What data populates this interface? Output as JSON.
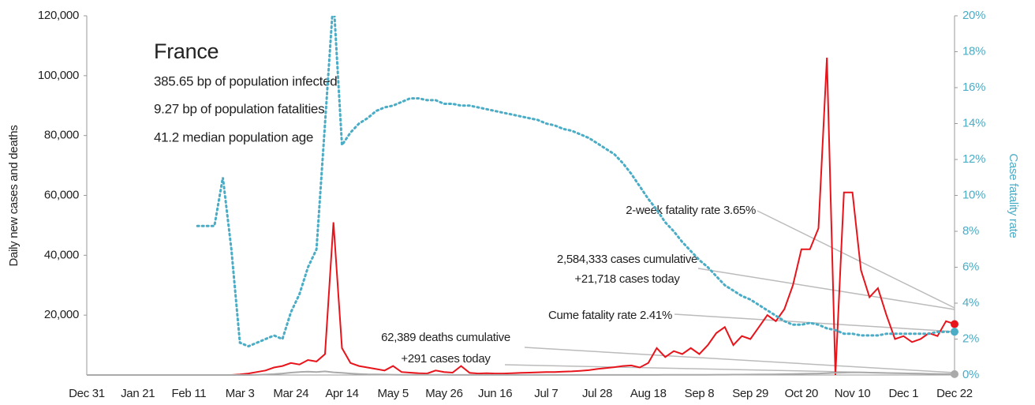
{
  "chart_data": {
    "type": "line",
    "title": "France",
    "subtitle_lines": [
      "385.65 bp of population infected",
      "9.27 bp of population fatalities",
      "41.2 median population age"
    ],
    "ylabel": "Daily new cases and deaths",
    "y2label": "Case fatality rate",
    "categories": [
      "Dec 31",
      null,
      null,
      null,
      null,
      null,
      "Jan 21",
      null,
      null,
      null,
      null,
      null,
      "Feb 11",
      null,
      null,
      null,
      null,
      null,
      "Mar 3",
      null,
      null,
      null,
      null,
      null,
      "Mar 24",
      null,
      null,
      null,
      null,
      null,
      "Apr 14",
      null,
      null,
      null,
      null,
      null,
      "May 5",
      null,
      null,
      null,
      null,
      null,
      "May 26",
      null,
      null,
      null,
      null,
      null,
      "Jun 16",
      null,
      null,
      null,
      null,
      null,
      "Jul 7",
      null,
      null,
      null,
      null,
      null,
      "Jul 28",
      null,
      null,
      null,
      null,
      null,
      "Aug 18",
      null,
      null,
      null,
      null,
      null,
      "Sep 8",
      null,
      null,
      null,
      null,
      null,
      "Sep 29",
      null,
      null,
      null,
      null,
      null,
      "Oct 20",
      null,
      null,
      null,
      null,
      null,
      "Nov 10",
      null,
      null,
      null,
      null,
      null,
      "Dec 1",
      null,
      null,
      null,
      null,
      null,
      "Dec 22"
    ],
    "series": [
      {
        "color": "#e8141b",
        "dash": "",
        "values": [
          0,
          0,
          0,
          0,
          0,
          0,
          0,
          0,
          0,
          0,
          0,
          0,
          0,
          0,
          0,
          0,
          0,
          0,
          200,
          500,
          1000,
          1500,
          2500,
          3000,
          4000,
          3500,
          5000,
          4500,
          7000,
          51000,
          9000,
          4000,
          3000,
          2500,
          2000,
          1500,
          3000,
          1000,
          800,
          600,
          500,
          1500,
          1000,
          800,
          3000,
          700,
          500,
          600,
          500,
          500,
          600,
          700,
          800,
          900,
          1000,
          1000,
          1100,
          1200,
          1400,
          1600,
          2000,
          2300,
          2600,
          3000,
          3200,
          2500,
          4000,
          9000,
          6000,
          8000,
          7000,
          9000,
          7000,
          10000,
          14000,
          16000,
          10000,
          13000,
          12000,
          16000,
          20000,
          18000,
          22000,
          30000,
          42000,
          42000,
          49000,
          106000,
          0,
          61000,
          61000,
          35000,
          26000,
          29000,
          20000,
          12000,
          13000,
          11000,
          12000,
          14000,
          13000,
          18000,
          17000
        ]
      },
      {
        "color": "#aaaaaa",
        "dash": "",
        "values": [
          0,
          0,
          0,
          0,
          0,
          0,
          0,
          0,
          0,
          0,
          0,
          0,
          0,
          0,
          0,
          0,
          0,
          0,
          0,
          0,
          50,
          150,
          300,
          500,
          800,
          1000,
          1100,
          1000,
          1200,
          900,
          700,
          500,
          350,
          250,
          200,
          150,
          100,
          90,
          80,
          70,
          60,
          50,
          40,
          30,
          30,
          30,
          20,
          20,
          15,
          15,
          15,
          15,
          15,
          15,
          15,
          15,
          15,
          15,
          15,
          15,
          15,
          15,
          15,
          15,
          15,
          15,
          20,
          30,
          40,
          50,
          60,
          70,
          80,
          90,
          100,
          110,
          120,
          130,
          150,
          180,
          200,
          250,
          300,
          350,
          400,
          450,
          500,
          600,
          700,
          800,
          900,
          850,
          800,
          700,
          650,
          600,
          550,
          500,
          450,
          400,
          350,
          320,
          300
        ]
      },
      {
        "color": "#4bacc6",
        "dash": "2 4",
        "axis": "y2",
        "values": [
          null,
          null,
          null,
          null,
          null,
          null,
          null,
          null,
          null,
          null,
          null,
          null,
          null,
          8.3,
          8.3,
          8.3,
          11,
          7,
          1.8,
          1.6,
          1.8,
          2.0,
          2.2,
          2.0,
          3.5,
          4.5,
          6,
          7,
          14,
          21,
          12.8,
          13.5,
          14,
          14.3,
          14.7,
          14.9,
          15.0,
          15.2,
          15.4,
          15.4,
          15.3,
          15.3,
          15.1,
          15.1,
          15.0,
          15.0,
          14.9,
          14.8,
          14.7,
          14.6,
          14.5,
          14.4,
          14.3,
          14.2,
          14.0,
          13.9,
          13.7,
          13.6,
          13.4,
          13.2,
          12.9,
          12.6,
          12.3,
          11.8,
          11.2,
          10.5,
          9.8,
          9.2,
          8.5,
          8.0,
          7.4,
          6.9,
          6.4,
          6.0,
          5.5,
          5.0,
          4.7,
          4.4,
          4.2,
          3.9,
          3.6,
          3.3,
          3.0,
          2.8,
          2.8,
          2.9,
          2.8,
          2.6,
          2.5,
          2.3,
          2.3,
          2.2,
          2.2,
          2.2,
          2.3,
          2.3,
          2.3,
          2.3,
          2.3,
          2.3,
          2.4,
          2.4,
          2.41
        ]
      }
    ],
    "ylim": [
      0,
      120000
    ],
    "yticks": [
      {
        "value": 20000,
        "label": "20,000"
      },
      {
        "value": 40000,
        "label": "40,000"
      },
      {
        "value": 60000,
        "label": "60,000"
      },
      {
        "value": 80000,
        "label": "80,000"
      },
      {
        "value": 100000,
        "label": "100,000"
      },
      {
        "value": 120000,
        "label": "120,000"
      }
    ],
    "y2lim": [
      0,
      20
    ],
    "y2ticks": [
      {
        "value": 0,
        "label": "0%"
      },
      {
        "value": 2,
        "label": "2%"
      },
      {
        "value": 4,
        "label": "4%"
      },
      {
        "value": 6,
        "label": "6%"
      },
      {
        "value": 8,
        "label": "8%"
      },
      {
        "value": 10,
        "label": "10%"
      },
      {
        "value": 12,
        "label": "12%"
      },
      {
        "value": 14,
        "label": "14%"
      },
      {
        "value": 16,
        "label": "16%"
      },
      {
        "value": 18,
        "label": "18%"
      },
      {
        "value": 20,
        "label": "20%"
      }
    ],
    "annotations": [
      "2-week fatality rate 3.65%",
      "2,584,333 cases cumulative",
      "+21,718 cases today",
      "Cume fatality rate 2.41%",
      "62,389 deaths cumulative",
      "+291 cases today"
    ]
  }
}
